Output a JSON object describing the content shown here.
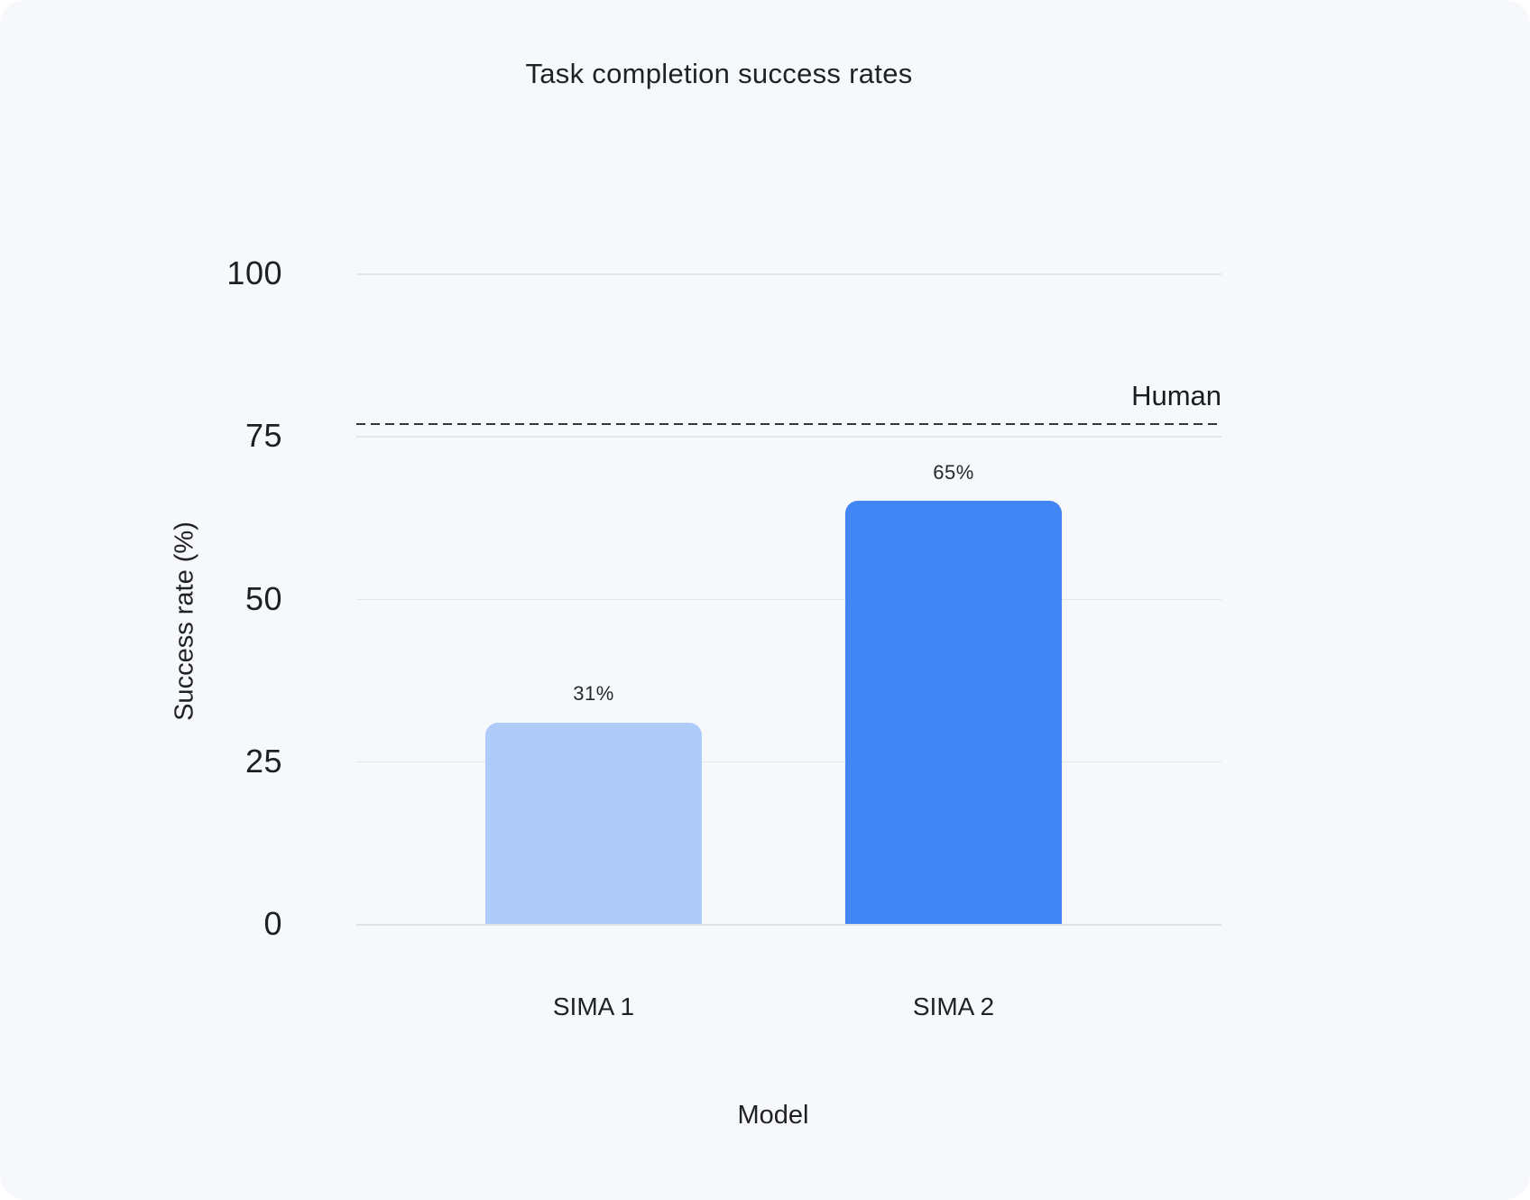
{
  "page": {
    "background_color": "#FFFFFF",
    "card_color": "#F6F8FC"
  },
  "chart_data": {
    "type": "bar",
    "title": "Task completion success rates",
    "xlabel": "Model",
    "ylabel": "Success rate (%)",
    "categories": [
      "SIMA 1",
      "SIMA 2"
    ],
    "values": [
      31,
      65
    ],
    "value_labels": [
      "31%",
      "65%"
    ],
    "bar_colors": [
      "#AECBFA",
      "#4285F4"
    ],
    "yticks": [
      0,
      25,
      50,
      75,
      100
    ],
    "ylim": [
      0,
      100
    ],
    "grid": true,
    "legend": "none",
    "reference_line": {
      "label": "Human",
      "value": 77,
      "style": "dashed",
      "color": "#33363C"
    },
    "text_color": "#202126",
    "gridline_color": "#E4E6EC",
    "baseline_color": "#DEE1E6"
  }
}
